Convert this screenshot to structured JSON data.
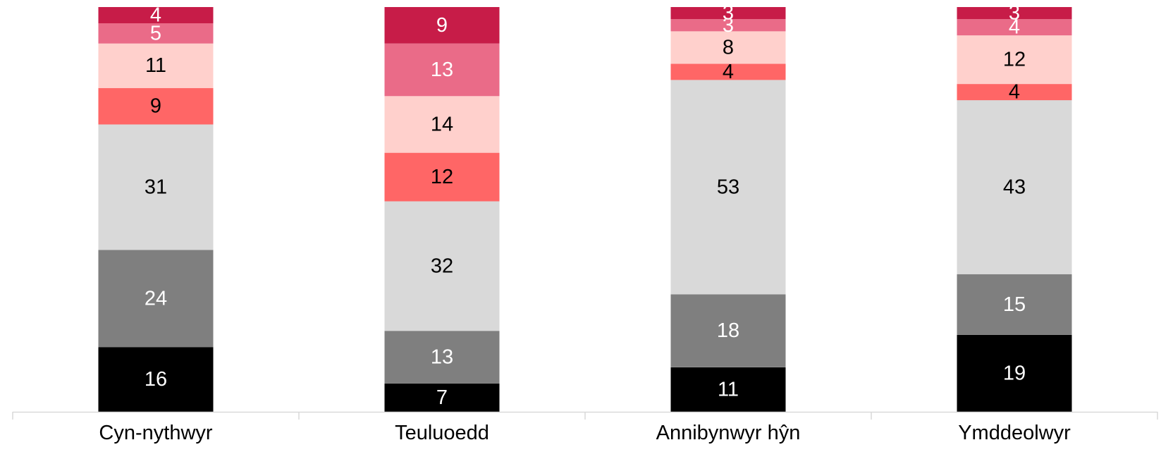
{
  "chart_data": {
    "type": "bar",
    "stacked": true,
    "categories": [
      "Cyn-nythwyr",
      "Teuluoedd",
      "Annibynwyr hŷn",
      "Ymddeolwyr"
    ],
    "ylim": [
      0,
      100
    ],
    "grid": false,
    "legend": "none",
    "series": [
      {
        "values": [
          16,
          7,
          11,
          19
        ],
        "color": "#000000",
        "label_color": "#ffffff"
      },
      {
        "values": [
          24,
          13,
          18,
          15
        ],
        "color": "#7f7f7f",
        "label_color": "#ffffff"
      },
      {
        "values": [
          31,
          32,
          53,
          43
        ],
        "color": "#d9d9d9",
        "label_color": "#000000"
      },
      {
        "values": [
          9,
          12,
          4,
          4
        ],
        "color": "#ff6666",
        "label_color": "#000000"
      },
      {
        "values": [
          11,
          14,
          8,
          12
        ],
        "color": "#ffd0cc",
        "label_color": "#000000"
      },
      {
        "values": [
          5,
          13,
          3,
          4
        ],
        "color": "#ea6b88",
        "label_color": "#ffffff"
      },
      {
        "values": [
          4,
          9,
          3,
          3
        ],
        "color": "#c71c48",
        "label_color": "#ffffff"
      }
    ]
  }
}
